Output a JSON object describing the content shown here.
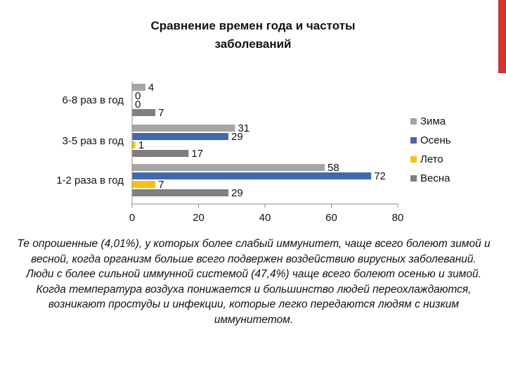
{
  "decor": {
    "accent_color": "#d0342c"
  },
  "chart_data": {
    "type": "bar",
    "orientation": "horizontal",
    "title_lines": [
      "Сравнение времен года и частоты",
      "заболеваний"
    ],
    "categories": [
      "6-8 раз в год",
      "3-5 раз в год",
      "1-2 раза в год"
    ],
    "series": [
      {
        "name": "Зима",
        "color": "#a6a6a6",
        "values": [
          4,
          31,
          58
        ]
      },
      {
        "name": "Осень",
        "color": "#4169b0",
        "values": [
          0,
          29,
          72
        ]
      },
      {
        "name": "Лето",
        "color": "#ffc000",
        "values": [
          0,
          1,
          7
        ]
      },
      {
        "name": "Весна",
        "color": "#7f7f7f",
        "values": [
          7,
          17,
          29
        ]
      }
    ],
    "xlim": [
      0,
      80
    ],
    "xticks": [
      0,
      20,
      40,
      60,
      80
    ],
    "grid": false,
    "legend_position": "right"
  },
  "caption": {
    "paragraphs": [
      "Те опрошенные (4,01%), у которых более слабый иммунитет, чаще всего болеют зимой и весной, когда организм больше всего подвержен воздействию вирусных заболеваний.",
      "Люди с более сильной иммунной системой (47,4%) чаще всего болеют осенью и зимой.",
      "Когда температура воздуха понижается и большинство людей переохлаждаются, возникают простуды и инфекции, которые легко передаются людям с низким иммунитетом."
    ]
  }
}
